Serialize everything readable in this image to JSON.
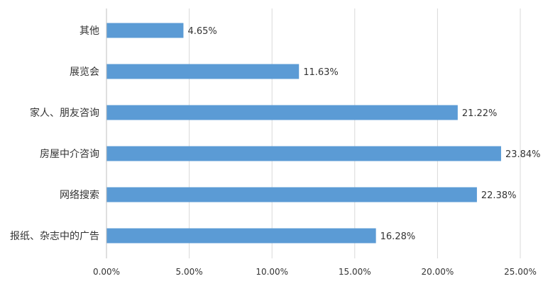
{
  "chart_data": {
    "type": "bar",
    "orientation": "horizontal",
    "categories": [
      "其他",
      "展览会",
      "家人、朋友咨询",
      "房屋中介咨询",
      "网络搜索",
      "报纸、杂志中的广告"
    ],
    "values": [
      4.65,
      11.63,
      21.22,
      23.84,
      22.38,
      16.28
    ],
    "value_labels": [
      "4.65%",
      "11.63%",
      "21.22%",
      "23.84%",
      "22.38%",
      "16.28%"
    ],
    "xlim": [
      0,
      25
    ],
    "xticks": [
      0,
      5,
      10,
      15,
      20,
      25
    ],
    "xtick_labels": [
      "0.00%",
      "5.00%",
      "10.00%",
      "15.00%",
      "20.00%",
      "25.00%"
    ],
    "grid": true,
    "bar_color": "#5b9bd5",
    "title": "",
    "xlabel": "",
    "ylabel": ""
  }
}
